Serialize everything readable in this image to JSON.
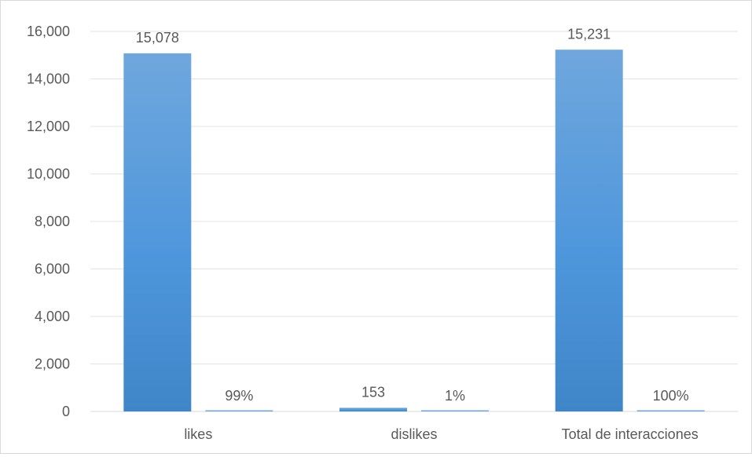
{
  "chart_data": {
    "type": "bar",
    "title": "",
    "xlabel": "",
    "ylabel": "",
    "categories": [
      "likes",
      "dislikes",
      "Total de interacciones"
    ],
    "series": [
      {
        "values": [
          15078,
          153,
          15231
        ],
        "labels": [
          "15,078",
          "153",
          "15,231"
        ],
        "color": "#5b9bd5"
      },
      {
        "values": [
          0.99,
          0.01,
          1.0
        ],
        "labels": [
          "99%",
          "1%",
          "100%"
        ],
        "color": "#5b9bd5"
      }
    ],
    "ylim": [
      0,
      16000
    ],
    "yticks": [
      0,
      2000,
      4000,
      6000,
      8000,
      10000,
      12000,
      14000,
      16000
    ],
    "ytick_labels": [
      "0",
      "2,000",
      "4,000",
      "6,000",
      "8,000",
      "10,000",
      "12,000",
      "14,000",
      "16,000"
    ],
    "grid": true,
    "legend": "none"
  }
}
